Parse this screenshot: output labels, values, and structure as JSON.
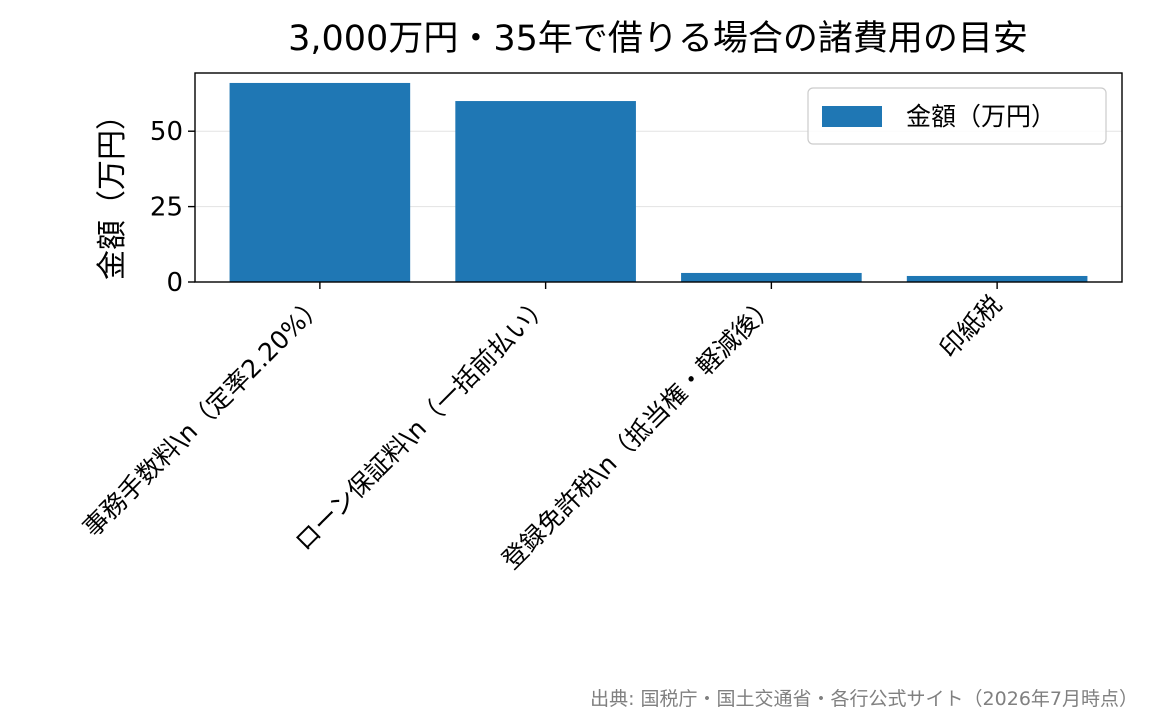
{
  "chart_data": {
    "type": "bar",
    "title": "3,000万円・35年で借りる場合の諸費用の目安",
    "ylabel": "金額（万円）",
    "xlabel": "",
    "categories": [
      "事務手数料\\n（定率2.20%）",
      "ローン保証料\\n（一括前払い）",
      "登録免許税\\n（抵当権・軽減後）",
      "印紙税"
    ],
    "series": [
      {
        "name": "金額（万円）",
        "values": [
          66,
          60,
          3,
          2
        ]
      }
    ],
    "ylim": [
      0,
      69.3
    ],
    "yticks": [
      0,
      25,
      50
    ],
    "grid": "y",
    "legend": "top-right",
    "bar_color": "#1f77b4"
  },
  "source_note": "出典: 国税庁・国土交通省・各行公式サイト（2026年7月時点）"
}
